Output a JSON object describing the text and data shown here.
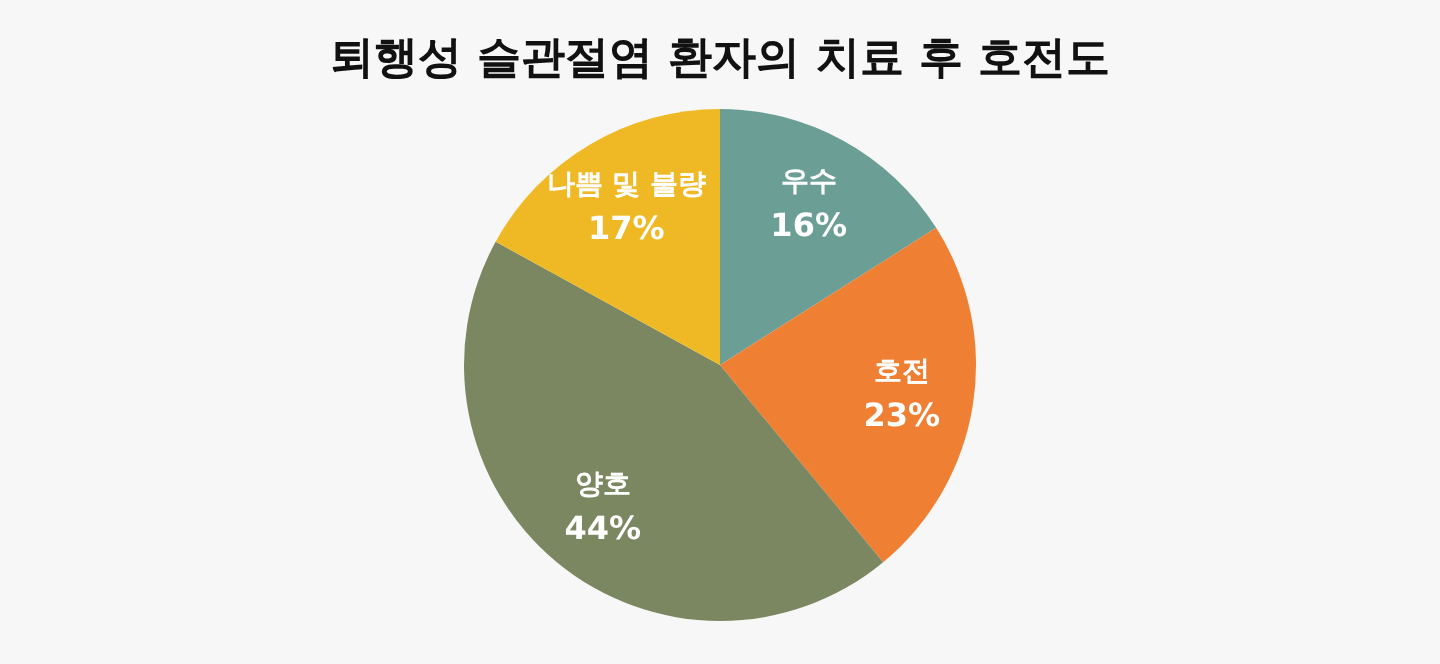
{
  "chart_data": {
    "type": "pie",
    "title": "퇴행성 슬관절염 환자의 치료 후 호전도",
    "categories": [
      "우수",
      "호전",
      "양호",
      "나쁨 및 불량"
    ],
    "values": [
      16,
      23,
      44,
      17
    ],
    "colors": [
      "#6b9f95",
      "#ee7f33",
      "#7b8760",
      "#efb925"
    ],
    "value_labels": [
      "16%",
      "23%",
      "44%",
      "17%"
    ],
    "legend": false
  }
}
